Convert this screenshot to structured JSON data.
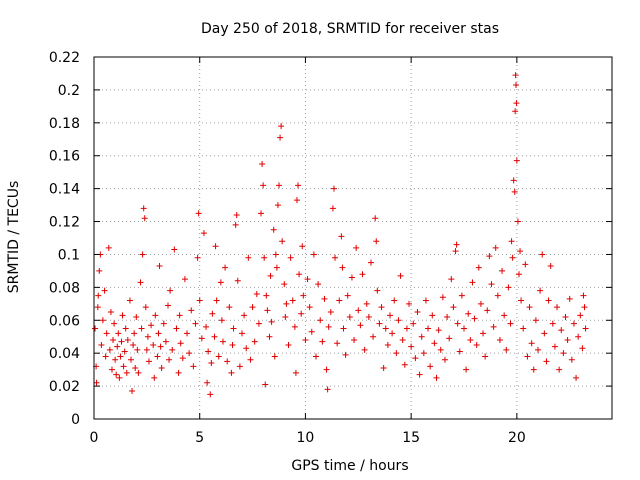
{
  "chart_data": {
    "type": "scatter",
    "title": "Day 250 of 2018, SRMTID for receiver stas",
    "xlabel": "GPS time / hours",
    "ylabel": "SRMTID / TECUs",
    "xlim": [
      0,
      24.5
    ],
    "ylim": [
      0,
      0.22
    ],
    "xticks": [
      0,
      5,
      10,
      15,
      20
    ],
    "xtick_labels": [
      "0",
      "5",
      "10",
      "15",
      "20"
    ],
    "yticks": [
      0,
      0.02,
      0.04,
      0.06,
      0.08,
      0.1,
      0.12,
      0.14,
      0.16,
      0.18,
      0.2,
      0.22
    ],
    "ytick_labels": [
      "0",
      "0.02",
      "0.04",
      "0.06",
      "0.08",
      "0.1",
      "0.12",
      "0.14",
      "0.16",
      "0.18",
      "0.2",
      "0.22"
    ],
    "grid": true,
    "marker": "+",
    "color": "#e00000",
    "series": [
      {
        "name": "SRMTID",
        "points": [
          [
            0.05,
            0.055
          ],
          [
            0.1,
            0.032
          ],
          [
            0.12,
            0.022
          ],
          [
            0.18,
            0.068
          ],
          [
            0.2,
            0.075
          ],
          [
            0.25,
            0.09
          ],
          [
            0.3,
            0.1
          ],
          [
            0.35,
            0.045
          ],
          [
            0.42,
            0.06
          ],
          [
            0.5,
            0.078
          ],
          [
            0.55,
            0.038
          ],
          [
            0.6,
            0.052
          ],
          [
            0.7,
            0.104
          ],
          [
            0.75,
            0.042
          ],
          [
            0.8,
            0.065
          ],
          [
            0.85,
            0.03
          ],
          [
            0.9,
            0.048
          ],
          [
            0.95,
            0.058
          ],
          [
            1.0,
            0.036
          ],
          [
            1.05,
            0.027
          ],
          [
            1.1,
            0.044
          ],
          [
            1.15,
            0.052
          ],
          [
            1.2,
            0.025
          ],
          [
            1.25,
            0.038
          ],
          [
            1.3,
            0.047
          ],
          [
            1.35,
            0.063
          ],
          [
            1.4,
            0.032
          ],
          [
            1.45,
            0.041
          ],
          [
            1.5,
            0.055
          ],
          [
            1.55,
            0.028
          ],
          [
            1.6,
            0.048
          ],
          [
            1.7,
            0.072
          ],
          [
            1.75,
            0.036
          ],
          [
            1.8,
            0.017
          ],
          [
            1.85,
            0.045
          ],
          [
            1.9,
            0.052
          ],
          [
            1.95,
            0.031
          ],
          [
            2.0,
            0.062
          ],
          [
            2.05,
            0.042
          ],
          [
            2.1,
            0.028
          ],
          [
            2.2,
            0.083
          ],
          [
            2.25,
            0.055
          ],
          [
            2.3,
            0.1
          ],
          [
            2.35,
            0.128
          ],
          [
            2.4,
            0.122
          ],
          [
            2.45,
            0.068
          ],
          [
            2.5,
            0.042
          ],
          [
            2.55,
            0.05
          ],
          [
            2.6,
            0.035
          ],
          [
            2.7,
            0.057
          ],
          [
            2.8,
            0.045
          ],
          [
            2.85,
            0.025
          ],
          [
            2.9,
            0.063
          ],
          [
            3.0,
            0.038
          ],
          [
            3.05,
            0.052
          ],
          [
            3.1,
            0.093
          ],
          [
            3.15,
            0.044
          ],
          [
            3.2,
            0.031
          ],
          [
            3.3,
            0.058
          ],
          [
            3.4,
            0.047
          ],
          [
            3.5,
            0.069
          ],
          [
            3.55,
            0.036
          ],
          [
            3.6,
            0.078
          ],
          [
            3.7,
            0.042
          ],
          [
            3.8,
            0.103
          ],
          [
            3.9,
            0.055
          ],
          [
            4.0,
            0.028
          ],
          [
            4.05,
            0.063
          ],
          [
            4.1,
            0.046
          ],
          [
            4.2,
            0.037
          ],
          [
            4.3,
            0.085
          ],
          [
            4.4,
            0.052
          ],
          [
            4.5,
            0.04
          ],
          [
            4.6,
            0.066
          ],
          [
            4.7,
            0.032
          ],
          [
            4.8,
            0.058
          ],
          [
            4.9,
            0.098
          ],
          [
            4.95,
            0.125
          ],
          [
            5.0,
            0.072
          ],
          [
            5.1,
            0.049
          ],
          [
            5.2,
            0.113
          ],
          [
            5.3,
            0.056
          ],
          [
            5.35,
            0.022
          ],
          [
            5.4,
            0.041
          ],
          [
            5.5,
            0.015
          ],
          [
            5.55,
            0.034
          ],
          [
            5.6,
            0.064
          ],
          [
            5.7,
            0.05
          ],
          [
            5.75,
            0.105
          ],
          [
            5.8,
            0.072
          ],
          [
            5.9,
            0.038
          ],
          [
            6.0,
            0.083
          ],
          [
            6.05,
            0.06
          ],
          [
            6.1,
            0.047
          ],
          [
            6.2,
            0.092
          ],
          [
            6.3,
            0.035
          ],
          [
            6.4,
            0.068
          ],
          [
            6.5,
            0.028
          ],
          [
            6.55,
            0.045
          ],
          [
            6.6,
            0.055
          ],
          [
            6.7,
            0.118
          ],
          [
            6.75,
            0.124
          ],
          [
            6.8,
            0.084
          ],
          [
            6.9,
            0.032
          ],
          [
            7.0,
            0.052
          ],
          [
            7.1,
            0.063
          ],
          [
            7.2,
            0.043
          ],
          [
            7.3,
            0.098
          ],
          [
            7.4,
            0.036
          ],
          [
            7.5,
            0.068
          ],
          [
            7.6,
            0.047
          ],
          [
            7.7,
            0.076
          ],
          [
            7.8,
            0.058
          ],
          [
            7.9,
            0.125
          ],
          [
            7.95,
            0.155
          ],
          [
            8.0,
            0.142
          ],
          [
            8.05,
            0.098
          ],
          [
            8.1,
            0.021
          ],
          [
            8.15,
            0.075
          ],
          [
            8.2,
            0.066
          ],
          [
            8.3,
            0.05
          ],
          [
            8.35,
            0.087
          ],
          [
            8.4,
            0.059
          ],
          [
            8.5,
            0.115
          ],
          [
            8.55,
            0.038
          ],
          [
            8.6,
            0.1
          ],
          [
            8.65,
            0.092
          ],
          [
            8.7,
            0.13
          ],
          [
            8.75,
            0.142
          ],
          [
            8.8,
            0.171
          ],
          [
            8.85,
            0.178
          ],
          [
            8.9,
            0.108
          ],
          [
            9.0,
            0.082
          ],
          [
            9.05,
            0.062
          ],
          [
            9.1,
            0.07
          ],
          [
            9.2,
            0.045
          ],
          [
            9.3,
            0.098
          ],
          [
            9.4,
            0.072
          ],
          [
            9.5,
            0.056
          ],
          [
            9.55,
            0.028
          ],
          [
            9.6,
            0.133
          ],
          [
            9.65,
            0.142
          ],
          [
            9.7,
            0.088
          ],
          [
            9.8,
            0.064
          ],
          [
            9.85,
            0.105
          ],
          [
            9.9,
            0.075
          ],
          [
            10.0,
            0.048
          ],
          [
            10.1,
            0.085
          ],
          [
            10.2,
            0.068
          ],
          [
            10.3,
            0.053
          ],
          [
            10.4,
            0.1
          ],
          [
            10.5,
            0.038
          ],
          [
            10.6,
            0.082
          ],
          [
            10.7,
            0.06
          ],
          [
            10.8,
            0.047
          ],
          [
            10.9,
            0.073
          ],
          [
            11.0,
            0.03
          ],
          [
            11.05,
            0.018
          ],
          [
            11.1,
            0.056
          ],
          [
            11.2,
            0.065
          ],
          [
            11.3,
            0.128
          ],
          [
            11.35,
            0.14
          ],
          [
            11.4,
            0.098
          ],
          [
            11.5,
            0.046
          ],
          [
            11.6,
            0.072
          ],
          [
            11.7,
            0.111
          ],
          [
            11.75,
            0.092
          ],
          [
            11.8,
            0.055
          ],
          [
            11.9,
            0.039
          ],
          [
            12.0,
            0.075
          ],
          [
            12.1,
            0.062
          ],
          [
            12.2,
            0.086
          ],
          [
            12.3,
            0.048
          ],
          [
            12.4,
            0.104
          ],
          [
            12.5,
            0.066
          ],
          [
            12.6,
            0.057
          ],
          [
            12.7,
            0.088
          ],
          [
            12.8,
            0.042
          ],
          [
            12.9,
            0.07
          ],
          [
            13.0,
            0.062
          ],
          [
            13.1,
            0.095
          ],
          [
            13.2,
            0.05
          ],
          [
            13.3,
            0.122
          ],
          [
            13.35,
            0.108
          ],
          [
            13.4,
            0.078
          ],
          [
            13.5,
            0.058
          ],
          [
            13.6,
            0.068
          ],
          [
            13.7,
            0.031
          ],
          [
            13.8,
            0.055
          ],
          [
            13.9,
            0.045
          ],
          [
            14.0,
            0.063
          ],
          [
            14.1,
            0.052
          ],
          [
            14.2,
            0.072
          ],
          [
            14.3,
            0.04
          ],
          [
            14.4,
            0.06
          ],
          [
            14.5,
            0.087
          ],
          [
            14.6,
            0.048
          ],
          [
            14.7,
            0.033
          ],
          [
            14.8,
            0.055
          ],
          [
            14.9,
            0.07
          ],
          [
            15.0,
            0.044
          ],
          [
            15.1,
            0.058
          ],
          [
            15.2,
            0.037
          ],
          [
            15.3,
            0.065
          ],
          [
            15.4,
            0.027
          ],
          [
            15.5,
            0.05
          ],
          [
            15.6,
            0.04
          ],
          [
            15.7,
            0.072
          ],
          [
            15.8,
            0.055
          ],
          [
            15.9,
            0.032
          ],
          [
            16.0,
            0.063
          ],
          [
            16.1,
            0.046
          ],
          [
            16.2,
            0.025
          ],
          [
            16.3,
            0.054
          ],
          [
            16.4,
            0.042
          ],
          [
            16.5,
            0.074
          ],
          [
            16.6,
            0.036
          ],
          [
            16.7,
            0.062
          ],
          [
            16.8,
            0.049
          ],
          [
            16.9,
            0.085
          ],
          [
            17.0,
            0.068
          ],
          [
            17.1,
            0.102
          ],
          [
            17.15,
            0.106
          ],
          [
            17.2,
            0.058
          ],
          [
            17.3,
            0.041
          ],
          [
            17.4,
            0.075
          ],
          [
            17.5,
            0.055
          ],
          [
            17.6,
            0.03
          ],
          [
            17.7,
            0.064
          ],
          [
            17.8,
            0.048
          ],
          [
            17.9,
            0.083
          ],
          [
            18.0,
            0.061
          ],
          [
            18.1,
            0.045
          ],
          [
            18.2,
            0.092
          ],
          [
            18.3,
            0.07
          ],
          [
            18.4,
            0.052
          ],
          [
            18.5,
            0.038
          ],
          [
            18.6,
            0.066
          ],
          [
            18.7,
            0.099
          ],
          [
            18.8,
            0.082
          ],
          [
            18.9,
            0.056
          ],
          [
            19.0,
            0.104
          ],
          [
            19.1,
            0.075
          ],
          [
            19.2,
            0.048
          ],
          [
            19.3,
            0.09
          ],
          [
            19.4,
            0.063
          ],
          [
            19.5,
            0.042
          ],
          [
            19.6,
            0.08
          ],
          [
            19.7,
            0.058
          ],
          [
            19.75,
            0.108
          ],
          [
            19.8,
            0.098
          ],
          [
            19.85,
            0.145
          ],
          [
            19.9,
            0.138
          ],
          [
            19.92,
            0.187
          ],
          [
            19.94,
            0.209
          ],
          [
            19.96,
            0.203
          ],
          [
            19.98,
            0.192
          ],
          [
            20.0,
            0.157
          ],
          [
            20.05,
            0.12
          ],
          [
            20.1,
            0.088
          ],
          [
            20.15,
            0.102
          ],
          [
            20.2,
            0.072
          ],
          [
            20.3,
            0.055
          ],
          [
            20.4,
            0.094
          ],
          [
            20.5,
            0.038
          ],
          [
            20.6,
            0.068
          ],
          [
            20.7,
            0.046
          ],
          [
            20.8,
            0.03
          ],
          [
            20.9,
            0.06
          ],
          [
            21.0,
            0.042
          ],
          [
            21.1,
            0.078
          ],
          [
            21.2,
            0.1
          ],
          [
            21.3,
            0.052
          ],
          [
            21.4,
            0.035
          ],
          [
            21.5,
            0.072
          ],
          [
            21.6,
            0.093
          ],
          [
            21.7,
            0.058
          ],
          [
            21.8,
            0.044
          ],
          [
            21.9,
            0.068
          ],
          [
            22.0,
            0.03
          ],
          [
            22.1,
            0.054
          ],
          [
            22.2,
            0.04
          ],
          [
            22.3,
            0.062
          ],
          [
            22.4,
            0.048
          ],
          [
            22.5,
            0.073
          ],
          [
            22.6,
            0.036
          ],
          [
            22.7,
            0.058
          ],
          [
            22.8,
            0.025
          ],
          [
            22.9,
            0.05
          ],
          [
            23.0,
            0.063
          ],
          [
            23.1,
            0.043
          ],
          [
            23.15,
            0.075
          ],
          [
            23.2,
            0.068
          ],
          [
            23.25,
            0.055
          ]
        ]
      }
    ]
  }
}
